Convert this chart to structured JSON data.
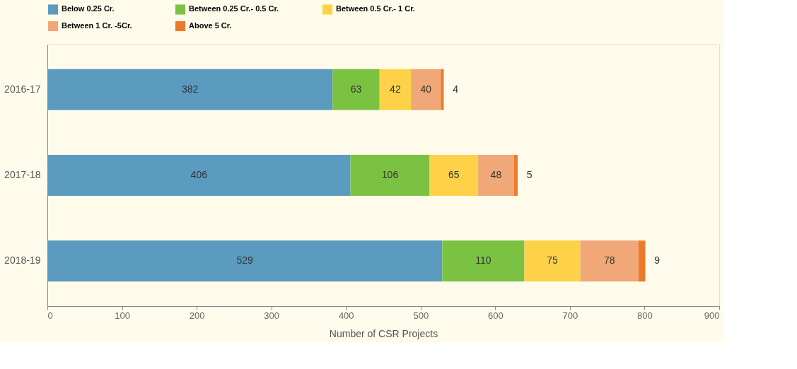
{
  "chart_data": {
    "type": "bar",
    "orientation": "horizontal",
    "stacked": true,
    "xlabel": "Number of CSR Projects",
    "categories": [
      "2016-17",
      "2017-18",
      "2018-19"
    ],
    "series": [
      {
        "name": "Below 0.25 Cr.",
        "color": "#5b9bc0",
        "values": [
          382,
          406,
          529
        ]
      },
      {
        "name": "Between 0.25 Cr.- 0.5 Cr.",
        "color": "#7cc242",
        "values": [
          63,
          106,
          110
        ]
      },
      {
        "name": "Between 0.5 Cr.- 1 Cr.",
        "color": "#fdd248",
        "values": [
          42,
          65,
          75
        ]
      },
      {
        "name": "Between 1 Cr. -5Cr.",
        "color": "#f0a878",
        "values": [
          40,
          48,
          78
        ]
      },
      {
        "name": "Above 5 Cr.",
        "color": "#ec7a2c",
        "values": [
          4,
          5,
          9
        ]
      }
    ],
    "xlim": [
      0,
      900
    ],
    "xticks": [
      0,
      100,
      200,
      300,
      400,
      500,
      600,
      700,
      800,
      900
    ],
    "data_labels": true,
    "grid": false,
    "legend": "top"
  }
}
